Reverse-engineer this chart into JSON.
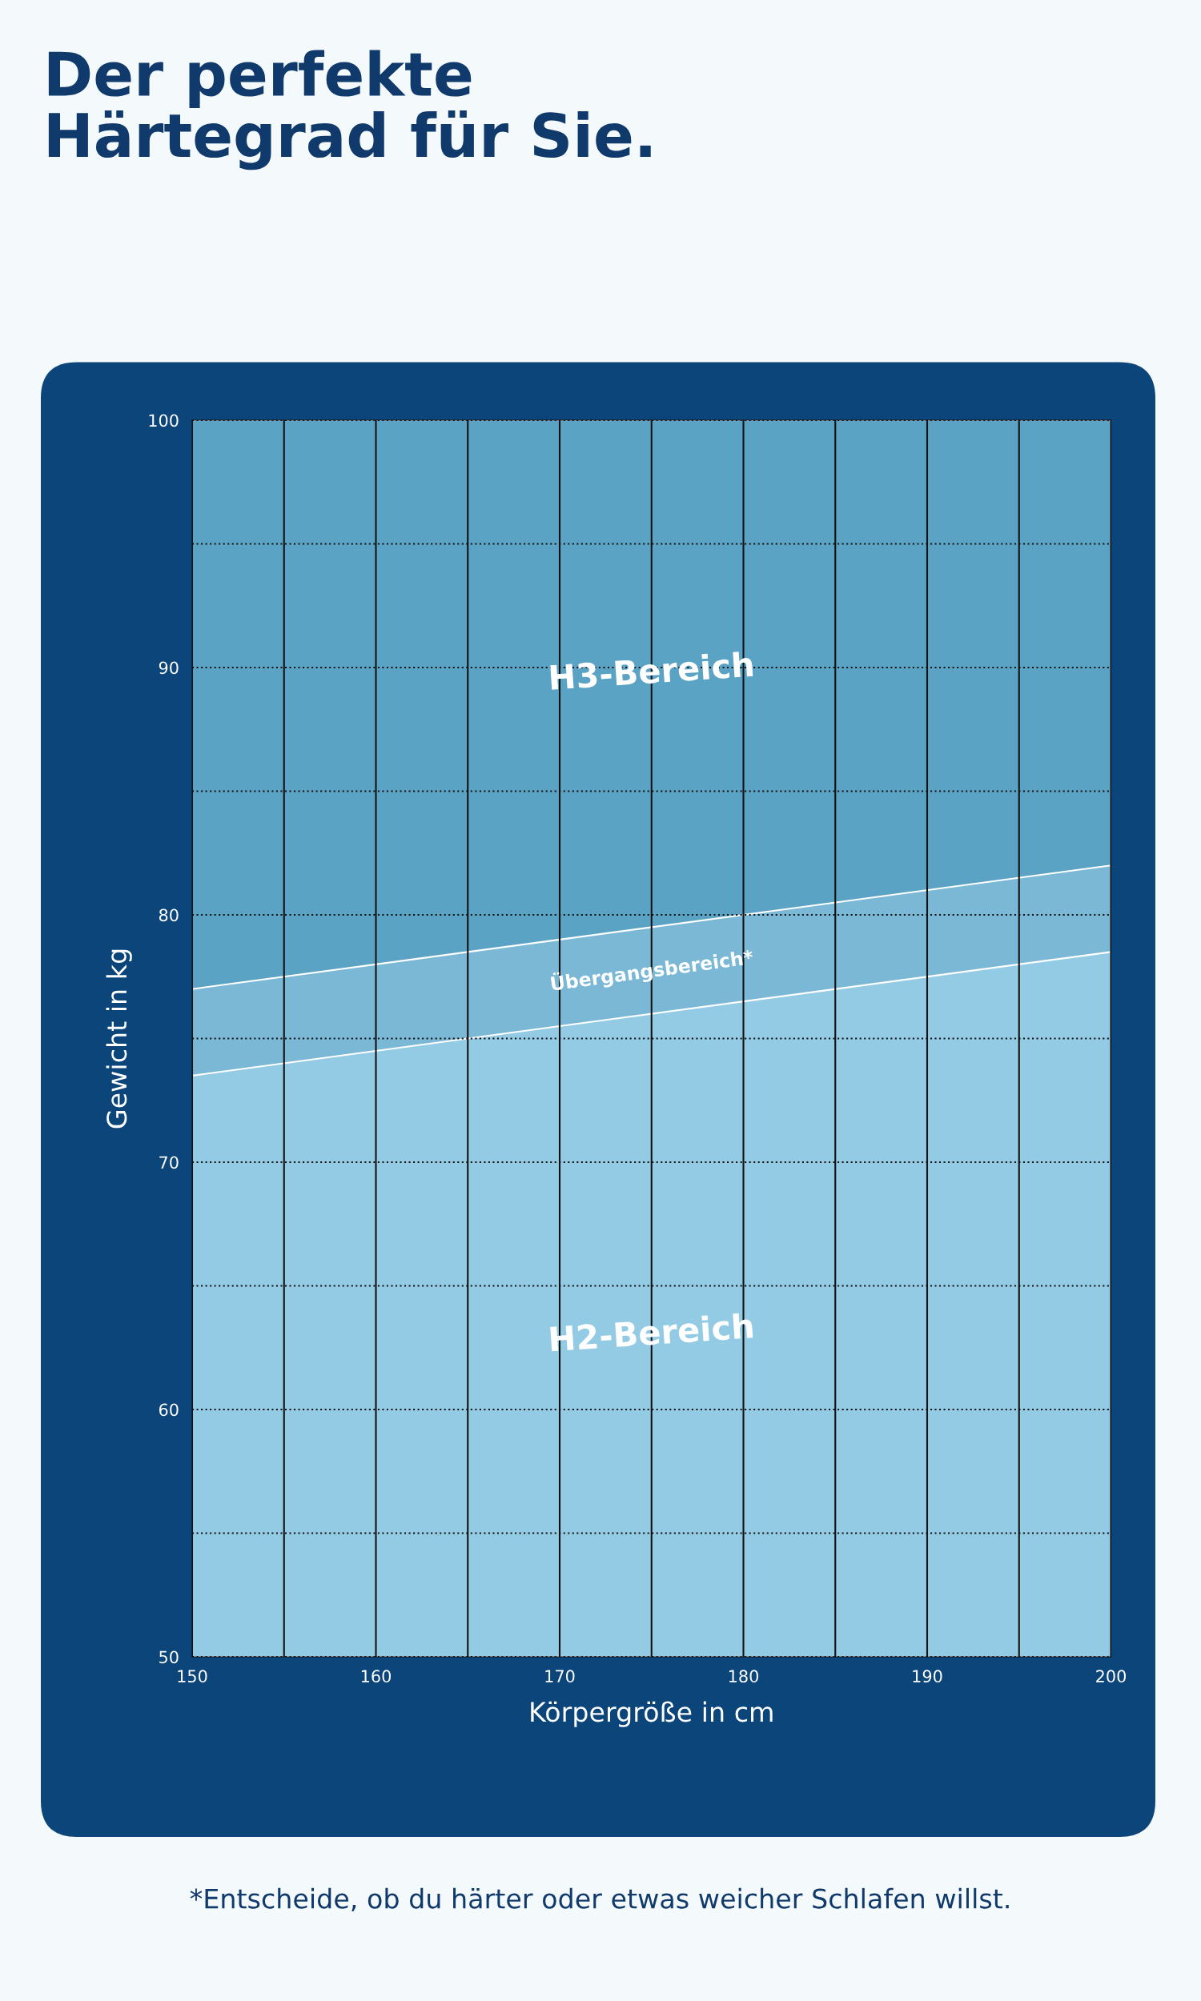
{
  "chart_data": {
    "type": "area",
    "title": "Der perfekte\nHärtegrad für Sie.",
    "xlabel": "Körpergröße in cm",
    "ylabel": "Gewicht in kg",
    "x": [
      150,
      200
    ],
    "series": [
      {
        "name": "H3-Bereich",
        "color": "#5ba3c4",
        "values": [
          100,
          100
        ]
      },
      {
        "name": "Übergangsbereich*",
        "color": "#7ab8d6",
        "values": [
          77,
          82
        ]
      },
      {
        "name": "H2-Bereich",
        "color": "#93cbe4",
        "values": [
          73.5,
          78.5
        ]
      }
    ],
    "xlim": [
      150,
      200
    ],
    "ylim": [
      50,
      100
    ],
    "xticks": [
      150,
      {
        "value": 155,
        "label": null
      },
      160,
      {
        "value": 165,
        "label": null
      },
      170,
      {
        "value": 175,
        "label": null
      },
      180,
      {
        "value": 185,
        "label": null
      },
      190,
      {
        "value": 195,
        "label": null
      },
      200
    ],
    "yticks": [
      50,
      {
        "value": 55,
        "label": null
      },
      60,
      {
        "value": 65,
        "label": null
      },
      70,
      {
        "value": 75,
        "label": null
      },
      80,
      {
        "value": 85,
        "label": null
      },
      90,
      {
        "value": 95,
        "label": null
      },
      100
    ],
    "grid": true,
    "annotations": [
      "*Entscheide, ob du härter oder etwas weicher Schlafen willst."
    ]
  }
}
